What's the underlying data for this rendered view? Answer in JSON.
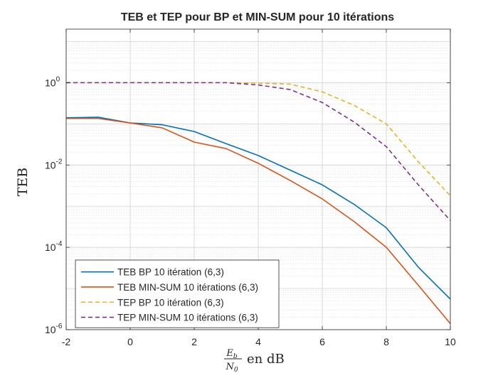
{
  "chart_data": {
    "type": "line",
    "title": "TEB et TEP pour BP et MIN-SUM pour 10 itérations",
    "ylabel": "TEB",
    "xlabel": {
      "numerator": "E",
      "numerator_sub": "b",
      "denominator": "N",
      "denominator_sub": "0",
      "suffix": "en dB"
    },
    "xlim": [
      -2,
      10
    ],
    "ylim": [
      1e-06,
      20
    ],
    "yscale": "log",
    "grid": true,
    "minor_grid": true,
    "legend_position": "bottom-left",
    "x_ticks": [
      {
        "value": -2,
        "label": "-2"
      },
      {
        "value": 0,
        "label": "0"
      },
      {
        "value": 2,
        "label": "2"
      },
      {
        "value": 4,
        "label": "4"
      },
      {
        "value": 6,
        "label": "6"
      },
      {
        "value": 8,
        "label": "8"
      },
      {
        "value": 10,
        "label": "10"
      }
    ],
    "y_ticks": [
      {
        "value": 1e-06,
        "base": "10",
        "exp": "-6"
      },
      {
        "value": 0.0001,
        "base": "10",
        "exp": "-4"
      },
      {
        "value": 0.01,
        "base": "10",
        "exp": "-2"
      },
      {
        "value": 1,
        "base": "10",
        "exp": "0"
      }
    ],
    "series": [
      {
        "name": "TEB BP 10 itération (6,3)",
        "color": "#0072BD",
        "style": "solid",
        "x": [
          -2,
          -1,
          0,
          1,
          2,
          3,
          4,
          5,
          6,
          7,
          8,
          9,
          10
        ],
        "y": [
          0.14,
          0.145,
          0.105,
          0.095,
          0.065,
          0.033,
          0.017,
          0.0075,
          0.0033,
          0.0011,
          0.0003,
          3.3e-05,
          5.5e-06
        ]
      },
      {
        "name": "TEB MIN-SUM 10 itérations (6,3)",
        "color": "#D95319",
        "style": "solid",
        "x": [
          -2,
          -1,
          0,
          1,
          2,
          3,
          4,
          5,
          6,
          7,
          8,
          9,
          10
        ],
        "y": [
          0.135,
          0.135,
          0.105,
          0.08,
          0.036,
          0.025,
          0.011,
          0.0042,
          0.0015,
          0.00042,
          0.0001,
          1.2e-05,
          1.4e-06
        ]
      },
      {
        "name": "TEP BP 10 itération (6,3)",
        "color": "#EDB120",
        "style": "dashed",
        "x": [
          -2,
          -1,
          0,
          1,
          2,
          3,
          4,
          5,
          6,
          7,
          8,
          9,
          10
        ],
        "y": [
          1,
          1,
          1,
          1,
          1,
          1,
          0.98,
          0.92,
          0.6,
          0.28,
          0.1,
          0.012,
          0.0018
        ]
      },
      {
        "name": "TEP MIN-SUM 10 itérations (6,3)",
        "color": "#7E2F8E",
        "style": "dashed",
        "x": [
          -2,
          -1,
          0,
          1,
          2,
          3,
          4,
          5,
          6,
          7,
          8,
          9,
          10
        ],
        "y": [
          1,
          1,
          1,
          1,
          1,
          1,
          0.88,
          0.68,
          0.33,
          0.11,
          0.028,
          0.0033,
          0.00045
        ]
      }
    ]
  }
}
